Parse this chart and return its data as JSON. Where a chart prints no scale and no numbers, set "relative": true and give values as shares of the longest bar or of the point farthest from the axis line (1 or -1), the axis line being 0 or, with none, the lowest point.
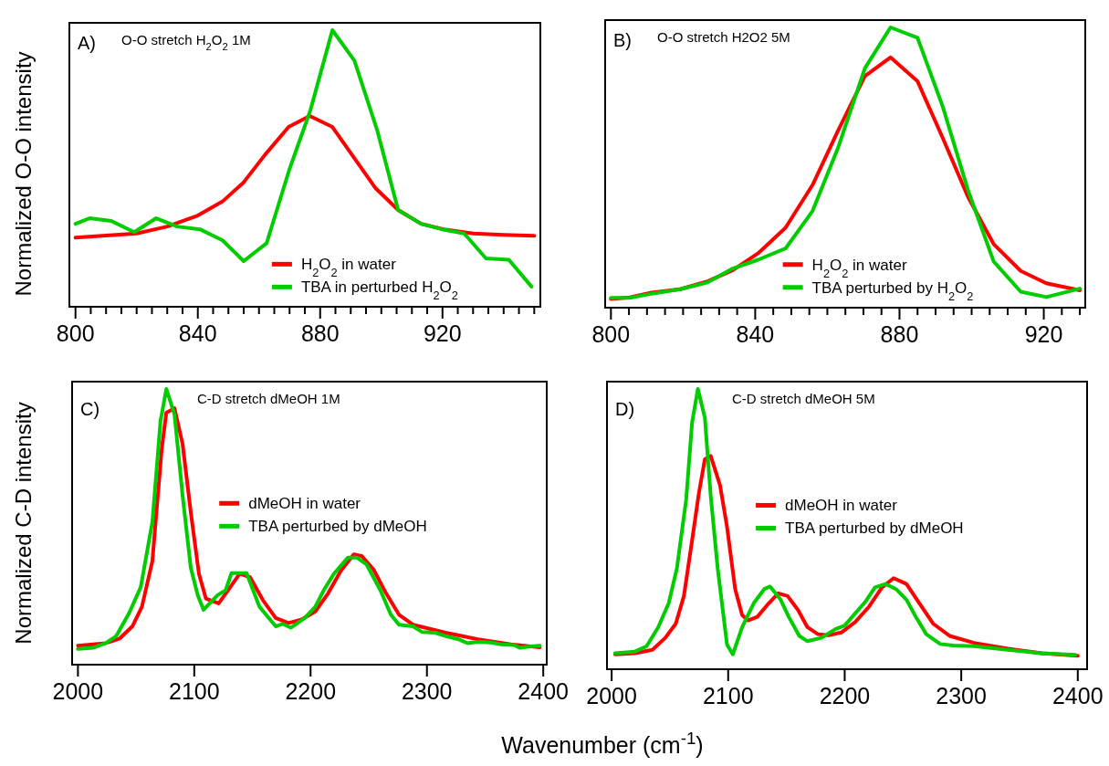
{
  "chart_data": [
    {
      "type": "line",
      "title": "O-O stretch H$_{2}$O$_{2}$ 1M",
      "ylabel": "Normalized O-O intensity",
      "annotations": [
        "A)"
      ],
      "relative": true,
      "legend": "bottom right",
      "xlim": [
        798,
        952
      ],
      "xticks": [
        800,
        {
          "value": 805,
          "label": null
        },
        {
          "value": 810,
          "label": null
        },
        {
          "value": 815,
          "label": null
        },
        {
          "value": 820,
          "label": null
        },
        {
          "value": 825,
          "label": null
        },
        {
          "value": 830,
          "label": null
        },
        {
          "value": 835,
          "label": null
        },
        840,
        {
          "value": 845,
          "label": null
        },
        {
          "value": 850,
          "label": null
        },
        {
          "value": 855,
          "label": null
        },
        {
          "value": 860,
          "label": null
        },
        {
          "value": 865,
          "label": null
        },
        {
          "value": 870,
          "label": null
        },
        {
          "value": 875,
          "label": null
        },
        880,
        {
          "value": 885,
          "label": null
        },
        {
          "value": 890,
          "label": null
        },
        {
          "value": 895,
          "label": null
        },
        {
          "value": 900,
          "label": null
        },
        {
          "value": 905,
          "label": null
        },
        {
          "value": 910,
          "label": null
        },
        {
          "value": 915,
          "label": null
        },
        920,
        {
          "value": 925,
          "label": null
        },
        {
          "value": 930,
          "label": null
        },
        {
          "value": 935,
          "label": null
        },
        {
          "value": 940,
          "label": null
        },
        {
          "value": 945,
          "label": null
        },
        {
          "value": 950,
          "label": null
        }
      ],
      "series": [
        {
          "name": "H$_{2}$O$_{2}$ in water",
          "color": "#ff0000",
          "x": [
            800,
            820,
            830,
            840,
            848,
            855,
            862,
            869.7,
            876.6,
            884,
            891,
            898,
            905.5,
            913,
            920.4,
            930,
            940,
            950
          ],
          "values": [
            0.25,
            0.265,
            0.29,
            0.33,
            0.38,
            0.45,
            0.55,
            0.65,
            0.69,
            0.65,
            0.54,
            0.43,
            0.35,
            0.3,
            0.28,
            0.265,
            0.26,
            0.257
          ]
        },
        {
          "name": "TBA in perturbed H$_{2}$O$_{2}$",
          "color": "#00cc00",
          "x": [
            800,
            804.6,
            811.7,
            819.2,
            826.4,
            833.3,
            840.7,
            848.1,
            855,
            862.5,
            869.9,
            876.8,
            884,
            891.2,
            898.6,
            905.5,
            913,
            919.9,
            927.1,
            934.2,
            941.7,
            949.1
          ],
          "values": [
            0.3,
            0.32,
            0.31,
            0.27,
            0.32,
            0.29,
            0.28,
            0.24,
            0.165,
            0.23,
            0.495,
            0.71,
            1,
            0.89,
            0.64,
            0.35,
            0.3,
            0.28,
            0.265,
            0.175,
            0.17,
            0.073
          ]
        }
      ]
    },
    {
      "type": "line",
      "title": "O-O stretch H2O2 5M",
      "annotations": [
        "B)"
      ],
      "relative": true,
      "legend": "bottom right",
      "xlim": [
        798.4,
        931.5
      ],
      "xticks": [
        800,
        {
          "value": 805,
          "label": null
        },
        {
          "value": 810,
          "label": null
        },
        {
          "value": 815,
          "label": null
        },
        {
          "value": 820,
          "label": null
        },
        {
          "value": 825,
          "label": null
        },
        {
          "value": 830,
          "label": null
        },
        {
          "value": 835,
          "label": null
        },
        840,
        {
          "value": 845,
          "label": null
        },
        {
          "value": 850,
          "label": null
        },
        {
          "value": 855,
          "label": null
        },
        {
          "value": 860,
          "label": null
        },
        {
          "value": 865,
          "label": null
        },
        {
          "value": 870,
          "label": null
        },
        {
          "value": 875,
          "label": null
        },
        880,
        {
          "value": 885,
          "label": null
        },
        {
          "value": 890,
          "label": null
        },
        {
          "value": 895,
          "label": null
        },
        {
          "value": 900,
          "label": null
        },
        {
          "value": 905,
          "label": null
        },
        {
          "value": 910,
          "label": null
        },
        {
          "value": 915,
          "label": null
        },
        920,
        {
          "value": 925,
          "label": null
        },
        {
          "value": 930,
          "label": null
        }
      ],
      "series": [
        {
          "name": "H$_{2}$O$_{2}$ in water",
          "color": "#ff0000",
          "x": [
            800,
            805.2,
            811.3,
            819.2,
            826.8,
            833.8,
            840.8,
            848.4,
            855.9,
            862.9,
            870.4,
            877.5,
            885,
            892,
            899,
            906.1,
            913.6,
            920.7,
            930
          ],
          "values": [
            0.031,
            0.037,
            0.054,
            0.066,
            0.094,
            0.134,
            0.194,
            0.285,
            0.438,
            0.63,
            0.826,
            0.893,
            0.808,
            0.605,
            0.395,
            0.227,
            0.131,
            0.087,
            0.062
          ]
        },
        {
          "name": "TBA perturbed by H$_{2}$O$_{2}$",
          "color": "#00cc00",
          "x": [
            800,
            805.2,
            811.3,
            819.2,
            826.8,
            833.8,
            840.8,
            848.4,
            855.9,
            862.9,
            870.4,
            877.5,
            885,
            892,
            899,
            906.1,
            913.6,
            920.7,
            930
          ],
          "values": [
            0.035,
            0.035,
            0.05,
            0.066,
            0.09,
            0.14,
            0.171,
            0.211,
            0.345,
            0.568,
            0.854,
            1,
            0.963,
            0.717,
            0.419,
            0.165,
            0.057,
            0.038,
            0.068
          ]
        }
      ]
    },
    {
      "type": "line",
      "title": "C-D stretch dMeOH 1M",
      "ylabel": "Normalized C-D intensity",
      "xlabel": "Wavenumber (cm$^{-1}$)",
      "annotations": [
        "C)"
      ],
      "relative": true,
      "legend": "right",
      "xlim": [
        1995,
        2403
      ],
      "xticks": [
        2000,
        2100,
        2200,
        2300,
        2400
      ],
      "series": [
        {
          "name": "dMeOH in water",
          "color": "#ff0000",
          "x": [
            2000,
            2024,
            2036,
            2047,
            2055,
            2064,
            2072,
            2076,
            2083,
            2090,
            2097,
            2104,
            2110,
            2121,
            2131,
            2139,
            2148,
            2159,
            2170,
            2181,
            2192,
            2204,
            2215,
            2226,
            2237,
            2244,
            2254,
            2265,
            2276,
            2288,
            2316,
            2344,
            2372,
            2397
          ],
          "values": [
            0.069,
            0.078,
            0.095,
            0.14,
            0.21,
            0.376,
            0.78,
            0.914,
            0.93,
            0.8,
            0.553,
            0.33,
            0.24,
            0.222,
            0.281,
            0.33,
            0.317,
            0.234,
            0.169,
            0.151,
            0.163,
            0.193,
            0.258,
            0.34,
            0.4,
            0.394,
            0.346,
            0.258,
            0.181,
            0.145,
            0.116,
            0.092,
            0.074,
            0.063
          ]
        },
        {
          "name": "TBA perturbed by dMeOH",
          "color": "#00cc00",
          "x": [
            2000,
            2013,
            2024,
            2033,
            2044,
            2054,
            2064,
            2071,
            2076,
            2083,
            2090,
            2097,
            2103,
            2108,
            2120,
            2127,
            2132,
            2145,
            2156,
            2170,
            2176,
            2183,
            2195,
            2204,
            2212,
            2220,
            2232,
            2240,
            2248,
            2260,
            2269,
            2276,
            2288,
            2296,
            2307,
            2316,
            2327,
            2335,
            2344,
            2355,
            2363,
            2375,
            2380,
            2389,
            2397
          ],
          "values": [
            0.057,
            0.061,
            0.078,
            0.104,
            0.187,
            0.281,
            0.518,
            0.884,
            1,
            0.908,
            0.612,
            0.352,
            0.252,
            0.199,
            0.252,
            0.27,
            0.332,
            0.332,
            0.21,
            0.139,
            0.148,
            0.134,
            0.169,
            0.21,
            0.275,
            0.329,
            0.388,
            0.388,
            0.364,
            0.27,
            0.181,
            0.145,
            0.139,
            0.118,
            0.116,
            0.104,
            0.092,
            0.078,
            0.083,
            0.08,
            0.074,
            0.071,
            0.061,
            0.066,
            0.069
          ]
        }
      ]
    },
    {
      "type": "line",
      "title": "C-D stretch dMeOH 5M",
      "annotations": [
        "D)"
      ],
      "relative": true,
      "legend": "right",
      "xlim": [
        1996,
        2408
      ],
      "xticks": [
        2000,
        2100,
        2200,
        2300,
        2400
      ],
      "series": [
        {
          "name": "dMeOH in water",
          "color": "#ff0000",
          "x": [
            2003,
            2020,
            2035,
            2046,
            2055,
            2062,
            2069,
            2075,
            2080,
            2085,
            2093,
            2099,
            2106,
            2112,
            2117,
            2125,
            2135,
            2143,
            2151,
            2160,
            2168,
            2177,
            2186,
            2197,
            2209,
            2221,
            2232,
            2242,
            2253,
            2264,
            2276,
            2290,
            2311,
            2340,
            2369,
            2400
          ],
          "values": [
            0.053,
            0.057,
            0.069,
            0.112,
            0.162,
            0.261,
            0.459,
            0.632,
            0.749,
            0.761,
            0.657,
            0.508,
            0.286,
            0.193,
            0.174,
            0.187,
            0.236,
            0.271,
            0.261,
            0.211,
            0.15,
            0.125,
            0.121,
            0.131,
            0.168,
            0.224,
            0.292,
            0.325,
            0.304,
            0.236,
            0.162,
            0.119,
            0.094,
            0.073,
            0.057,
            0.048
          ]
        },
        {
          "name": "TBA perturbed by dMeOH",
          "color": "#00cc00",
          "x": [
            2003,
            2020,
            2030,
            2040,
            2049,
            2056,
            2064,
            2069,
            2074,
            2080,
            2085,
            2091,
            2099,
            2104,
            2112,
            2122,
            2131,
            2136,
            2145,
            2152,
            2161,
            2168,
            2180,
            2192,
            2200,
            2209,
            2218,
            2226,
            2235,
            2244,
            2253,
            2261,
            2270,
            2282,
            2293,
            2311,
            2340,
            2369,
            2398
          ],
          "values": [
            0.057,
            0.063,
            0.082,
            0.15,
            0.236,
            0.36,
            0.607,
            0.879,
            1,
            0.897,
            0.619,
            0.36,
            0.088,
            0.053,
            0.15,
            0.236,
            0.286,
            0.295,
            0.248,
            0.187,
            0.119,
            0.1,
            0.112,
            0.143,
            0.156,
            0.199,
            0.242,
            0.292,
            0.304,
            0.286,
            0.248,
            0.187,
            0.125,
            0.09,
            0.085,
            0.082,
            0.069,
            0.057,
            0.051
          ]
        }
      ]
    }
  ]
}
